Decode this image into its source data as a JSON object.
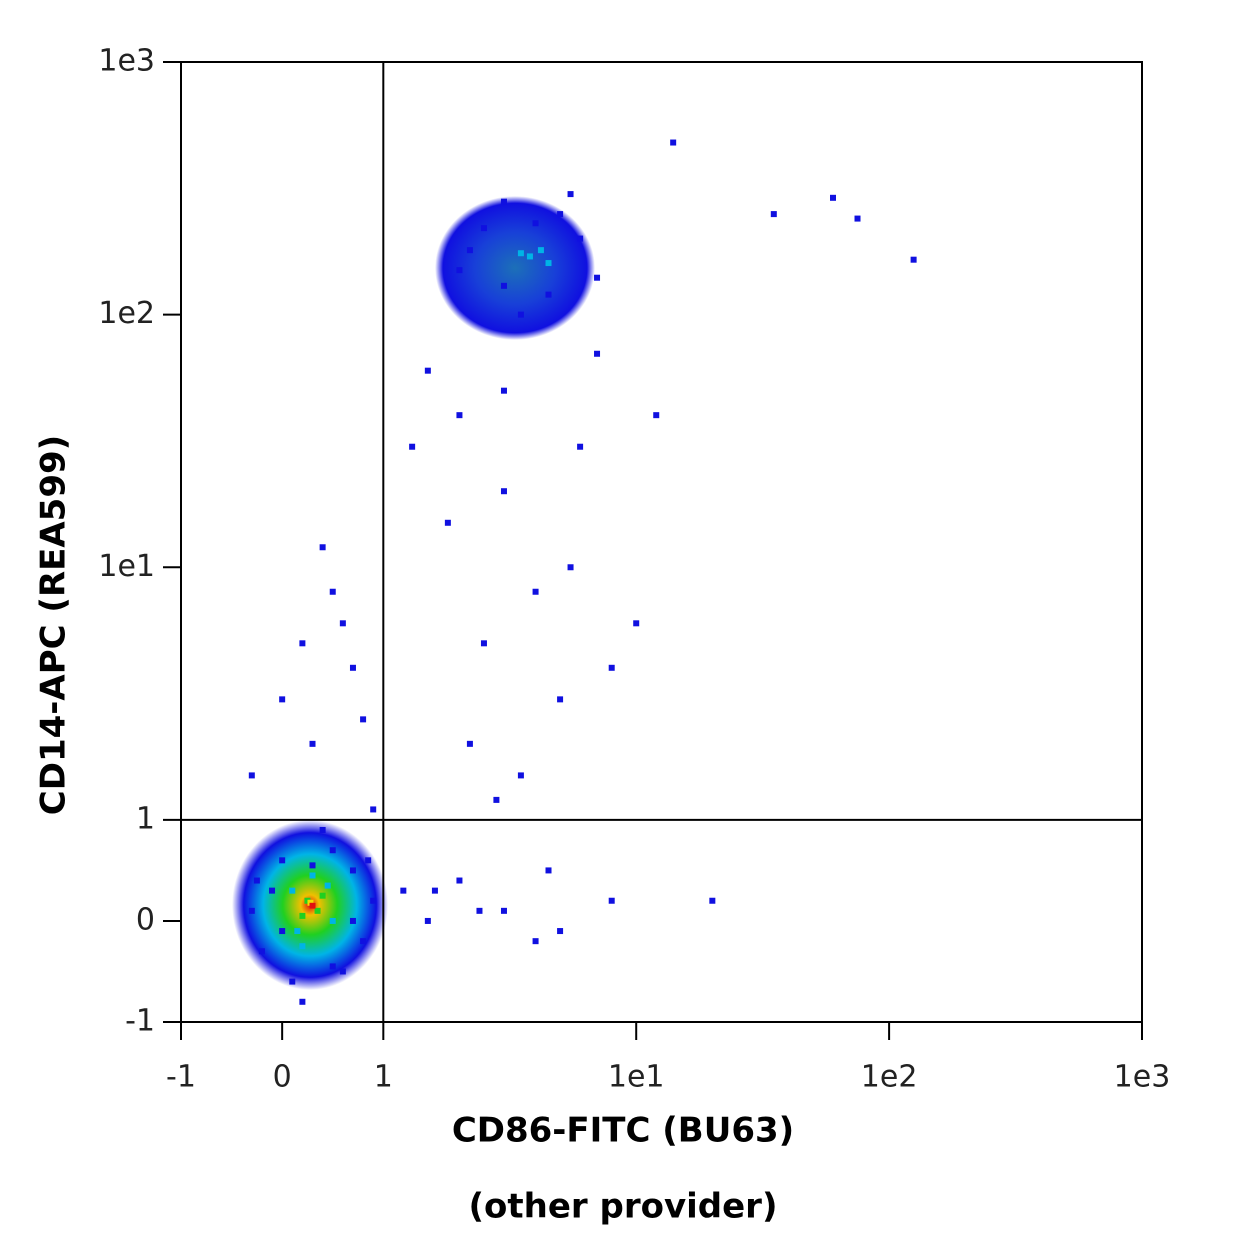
{
  "chart_data": {
    "type": "scatter",
    "scale": "biexponential",
    "xlabel": "CD86-FITC (BU63)",
    "subtitle": "(other provider)",
    "ylabel": "CD14-APC (REA599)",
    "xlim": [
      -1,
      1000
    ],
    "ylim": [
      -1,
      1000
    ],
    "xticks": [
      -1,
      0,
      1,
      {
        "value": 10,
        "label": "1e1"
      },
      {
        "value": 100,
        "label": "1e2"
      },
      {
        "value": 1000,
        "label": "1e3"
      }
    ],
    "yticks": [
      -1,
      0,
      1,
      {
        "value": 10,
        "label": "1e1"
      },
      {
        "value": 100,
        "label": "1e2"
      },
      {
        "value": 1000,
        "label": "1e3"
      }
    ],
    "gates": {
      "x": 1,
      "y": 1,
      "color": "#000000"
    },
    "series": [
      {
        "color": "#1010e0",
        "x": [
          -0.3,
          -0.2,
          0.0,
          0.1,
          0.5,
          0.7,
          0.8,
          0.9,
          0.2,
          0.4,
          -0.1,
          0.6,
          0.3,
          0.0,
          0.7,
          0.5,
          -0.25,
          0.85,
          2,
          2.5,
          3,
          5,
          6,
          7,
          3.5,
          4.5,
          2.2,
          5.5,
          3,
          4,
          1.5,
          2,
          3,
          4,
          5,
          2.5,
          1.8,
          3.5,
          6,
          7,
          2.2,
          4.5,
          1.3,
          5.5,
          3,
          2.8,
          8,
          10,
          12,
          1.6,
          2.4,
          4,
          0.0,
          0.2,
          0.5,
          0.7,
          0.3,
          0.6,
          0.8,
          -0.3,
          0.4,
          0.9,
          1.2,
          1.5,
          2,
          3,
          5,
          8,
          35,
          60,
          75,
          125,
          14,
          20
        ],
        "y": [
          0.1,
          -0.3,
          0.6,
          -0.6,
          0.7,
          0.5,
          -0.2,
          0.2,
          -0.8,
          0.9,
          0.3,
          -0.5,
          0.55,
          -0.1,
          0.0,
          -0.45,
          0.4,
          0.6,
          150,
          220,
          280,
          250,
          200,
          140,
          100,
          120,
          180,
          300,
          130,
          230,
          60,
          40,
          20,
          8,
          3,
          5,
          15,
          1.5,
          30,
          70,
          2,
          0.5,
          30,
          10,
          50,
          1.2,
          4,
          6,
          40,
          0.3,
          0.1,
          -0.2,
          3,
          5,
          8,
          4,
          2,
          6,
          2.5,
          1.5,
          12,
          1.1,
          0.3,
          0.0,
          0.4,
          0.1,
          -0.1,
          0.2,
          250,
          290,
          240,
          165,
          480,
          0.2
        ]
      },
      {
        "color": "#00b4e6",
        "x": [
          0.1,
          0.5,
          0.3,
          0.2,
          0.45,
          0.15,
          3.8,
          4.2,
          4.5,
          3.5
        ],
        "y": [
          0.3,
          0.0,
          0.45,
          -0.25,
          0.35,
          -0.1,
          170,
          180,
          160,
          175
        ]
      },
      {
        "color": "#20d020",
        "x": [
          0.25,
          0.35,
          0.2,
          0.4
        ],
        "y": [
          0.2,
          0.1,
          0.05,
          0.25
        ]
      },
      {
        "color": "#f0e000",
        "x": [
          0.3,
          0.28
        ],
        "y": [
          0.15,
          0.18
        ]
      },
      {
        "color": "#e01010",
        "x": [
          0.3
        ],
        "y": [
          0.15
        ]
      }
    ]
  }
}
